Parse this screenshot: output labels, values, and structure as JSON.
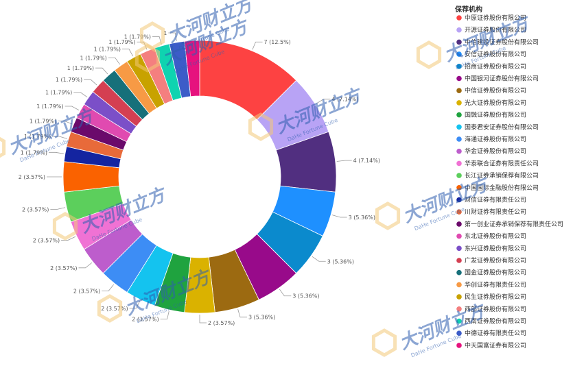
{
  "chart_data": {
    "type": "pie",
    "donut": true,
    "legend_title": "保荐机构",
    "legend_position": "right",
    "slices": [
      {
        "name": "中原证券股份有限公司",
        "value": 7,
        "label": "7 (12.5%)",
        "color": "#fd4242"
      },
      {
        "name": "开源证券股份有限公司",
        "value": 4,
        "label": "4 (7.14%)",
        "color": "#b8a3f5"
      },
      {
        "name": "中信建投证券股份有限公司",
        "value": 4,
        "label": "4 (7.14%)",
        "color": "#512f80"
      },
      {
        "name": "安信证券股份有限公司",
        "value": 3,
        "label": "3 (5.36%)",
        "color": "#1e90ff"
      },
      {
        "name": "招商证券股份有限公司",
        "value": 3,
        "label": "3 (5.36%)",
        "color": "#0b8acd"
      },
      {
        "name": "中国银河证券股份有限公司",
        "value": 3,
        "label": "3 (5.36%)",
        "color": "#980a8a"
      },
      {
        "name": "中信证券股份有限公司",
        "value": 3,
        "label": "3 (5.36%)",
        "color": "#9c6a11"
      },
      {
        "name": "光大证券股份有限公司",
        "value": 2,
        "label": "2 (3.57%)",
        "color": "#dab200"
      },
      {
        "name": "国融证券股份有限公司",
        "value": 2,
        "label": "2 (3.57%)",
        "color": "#1fa33f"
      },
      {
        "name": "国泰君安证券股份有限公司",
        "value": 2,
        "label": "2 (3.57%)",
        "color": "#14c3ef"
      },
      {
        "name": "海通证券股份有限公司",
        "value": 2,
        "label": "2 (3.57%)",
        "color": "#3d8df5"
      },
      {
        "name": "华金证券股份有限公司",
        "value": 2,
        "label": "2 (3.57%)",
        "color": "#bd5dcc"
      },
      {
        "name": "华泰联合证券有限责任公司",
        "value": 2,
        "label": "2 (3.57%)",
        "color": "#f072d4"
      },
      {
        "name": "长江证券承销保荐有限公司",
        "value": 2,
        "label": "2 (3.57%)",
        "color": "#5ccf5c"
      },
      {
        "name": "中国国际金融股份有限公司",
        "value": 2,
        "label": "2 (3.57%)",
        "color": "#fa6200"
      },
      {
        "name": "财信证券有限责任公司",
        "value": 1,
        "label": "1 (1.79%)",
        "color": "#1424a0"
      },
      {
        "name": "川财证券有限责任公司",
        "value": 1,
        "label": "1 (1.79%)",
        "color": "#e86a3a"
      },
      {
        "name": "第一创业证券承销保荐有限责任公司",
        "value": 1,
        "label": "1 (1.79%)",
        "color": "#6b0a6b"
      },
      {
        "name": "东北证券股份有限公司",
        "value": 1,
        "label": "1 (1.79%)",
        "color": "#e04ab0"
      },
      {
        "name": "东兴证券股份有限公司",
        "value": 1,
        "label": "1 (1.79%)",
        "color": "#7b4fc8"
      },
      {
        "name": "广发证券股份有限公司",
        "value": 1,
        "label": "1 (1.79%)",
        "color": "#d43f52"
      },
      {
        "name": "国金证券股份有限公司",
        "value": 1,
        "label": "1 (1.79%)",
        "color": "#17707a"
      },
      {
        "name": "华创证券有限责任公司",
        "value": 1,
        "label": "1 (1.79%)",
        "color": "#f79a45"
      },
      {
        "name": "民生证券股份有限公司",
        "value": 1,
        "label": "1 (1.79%)",
        "color": "#c8a200"
      },
      {
        "name": "西部证券股份有限公司",
        "value": 1,
        "label": "1 (1.79%)",
        "color": "#f47f7f"
      },
      {
        "name": "西南证券股份有限公司",
        "value": 1,
        "label": "1 (1.79%)",
        "color": "#0fd3b0"
      },
      {
        "name": "中德证券有限责任公司",
        "value": 1,
        "label": "1",
        "color": "#3c5cc8"
      },
      {
        "name": "中天国富证券有限公司",
        "value": 1,
        "label": "",
        "color": "#e6127e"
      }
    ]
  },
  "watermark": {
    "text": "大河财立方",
    "subtext": "DaHe Fortune Cube"
  }
}
